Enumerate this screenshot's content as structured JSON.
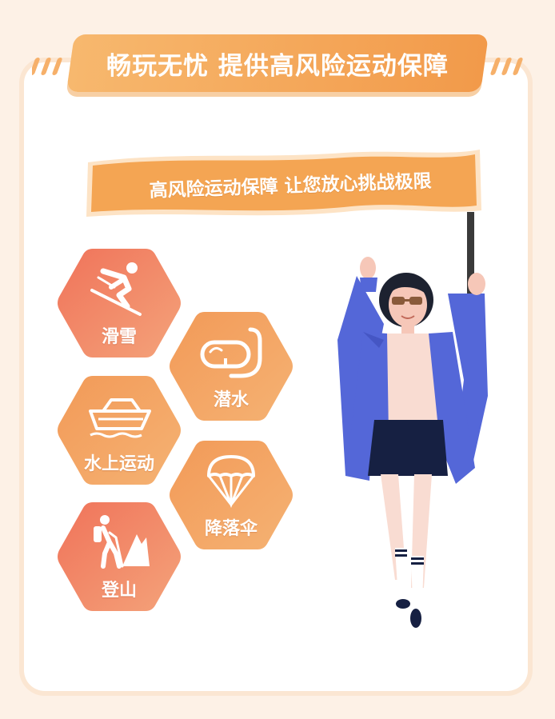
{
  "header": {
    "title": "畅玩无忧 提供高风险运动保障"
  },
  "banner": {
    "text": "高风险运动保障 让您放心挑战极限"
  },
  "activities": [
    {
      "label": "滑雪",
      "icon": "skiing-icon"
    },
    {
      "label": "潜水",
      "icon": "diving-mask-icon"
    },
    {
      "label": "水上运动",
      "icon": "boat-icon"
    },
    {
      "label": "降落伞",
      "icon": "parachute-icon"
    },
    {
      "label": "登山",
      "icon": "hiking-icon"
    }
  ],
  "colors": {
    "accent": "#f29a4a",
    "hex_red": "#ef7b5c",
    "hex_orange": "#f3a463",
    "coat": "#5467d8"
  }
}
